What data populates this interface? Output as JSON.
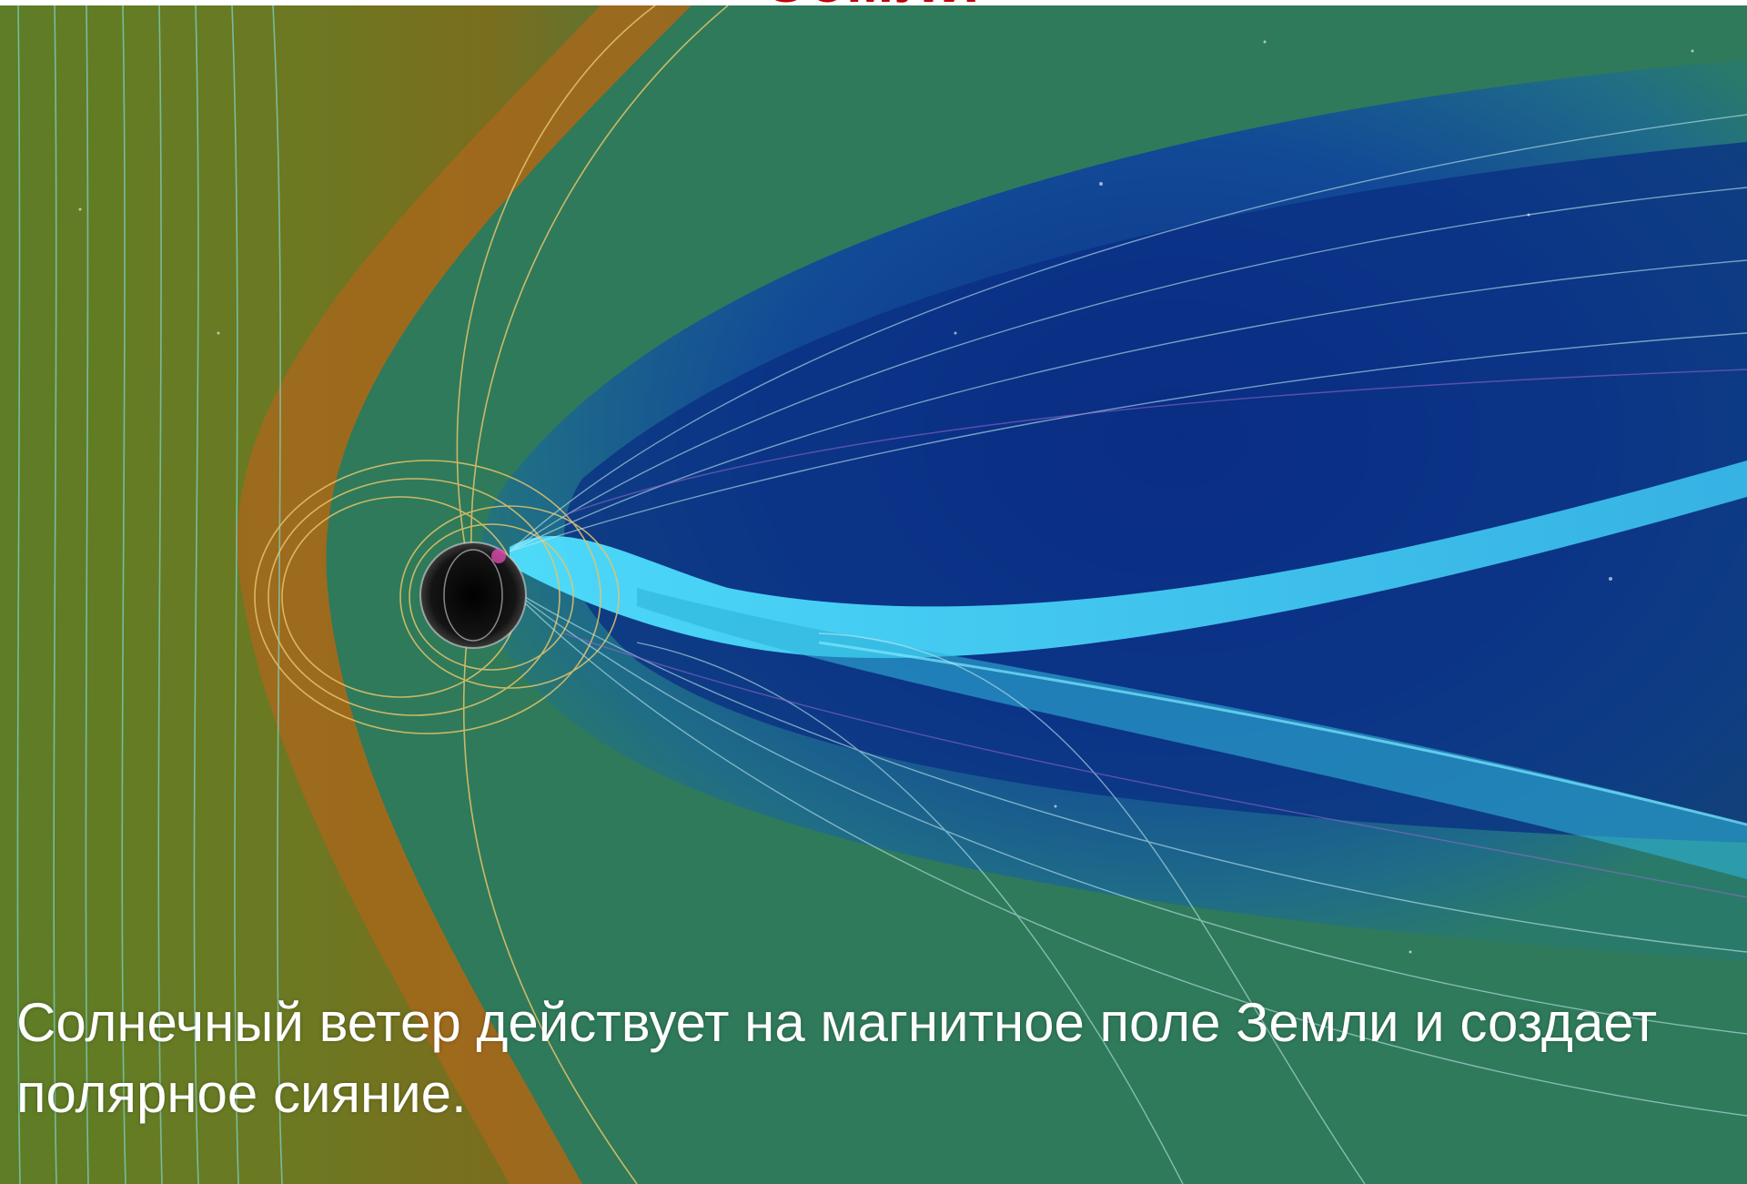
{
  "slide": {
    "title_fragment": "Земли",
    "caption_line1": "Солнечный ветер  действует на  магнитное поле Земли и создает",
    "caption_line2": "полярное сияние."
  },
  "colors": {
    "title": "#c00000",
    "caption": "#ffffff",
    "solar_wind_region": "#5a7f2a",
    "bow_shock": "#a86a1a",
    "magnetosphere_inner": "#0f3f8c",
    "plasma_sheet": "#33c8e0",
    "earth": "#111111"
  },
  "image": {
    "subject": "earth-magnetosphere-icon"
  }
}
